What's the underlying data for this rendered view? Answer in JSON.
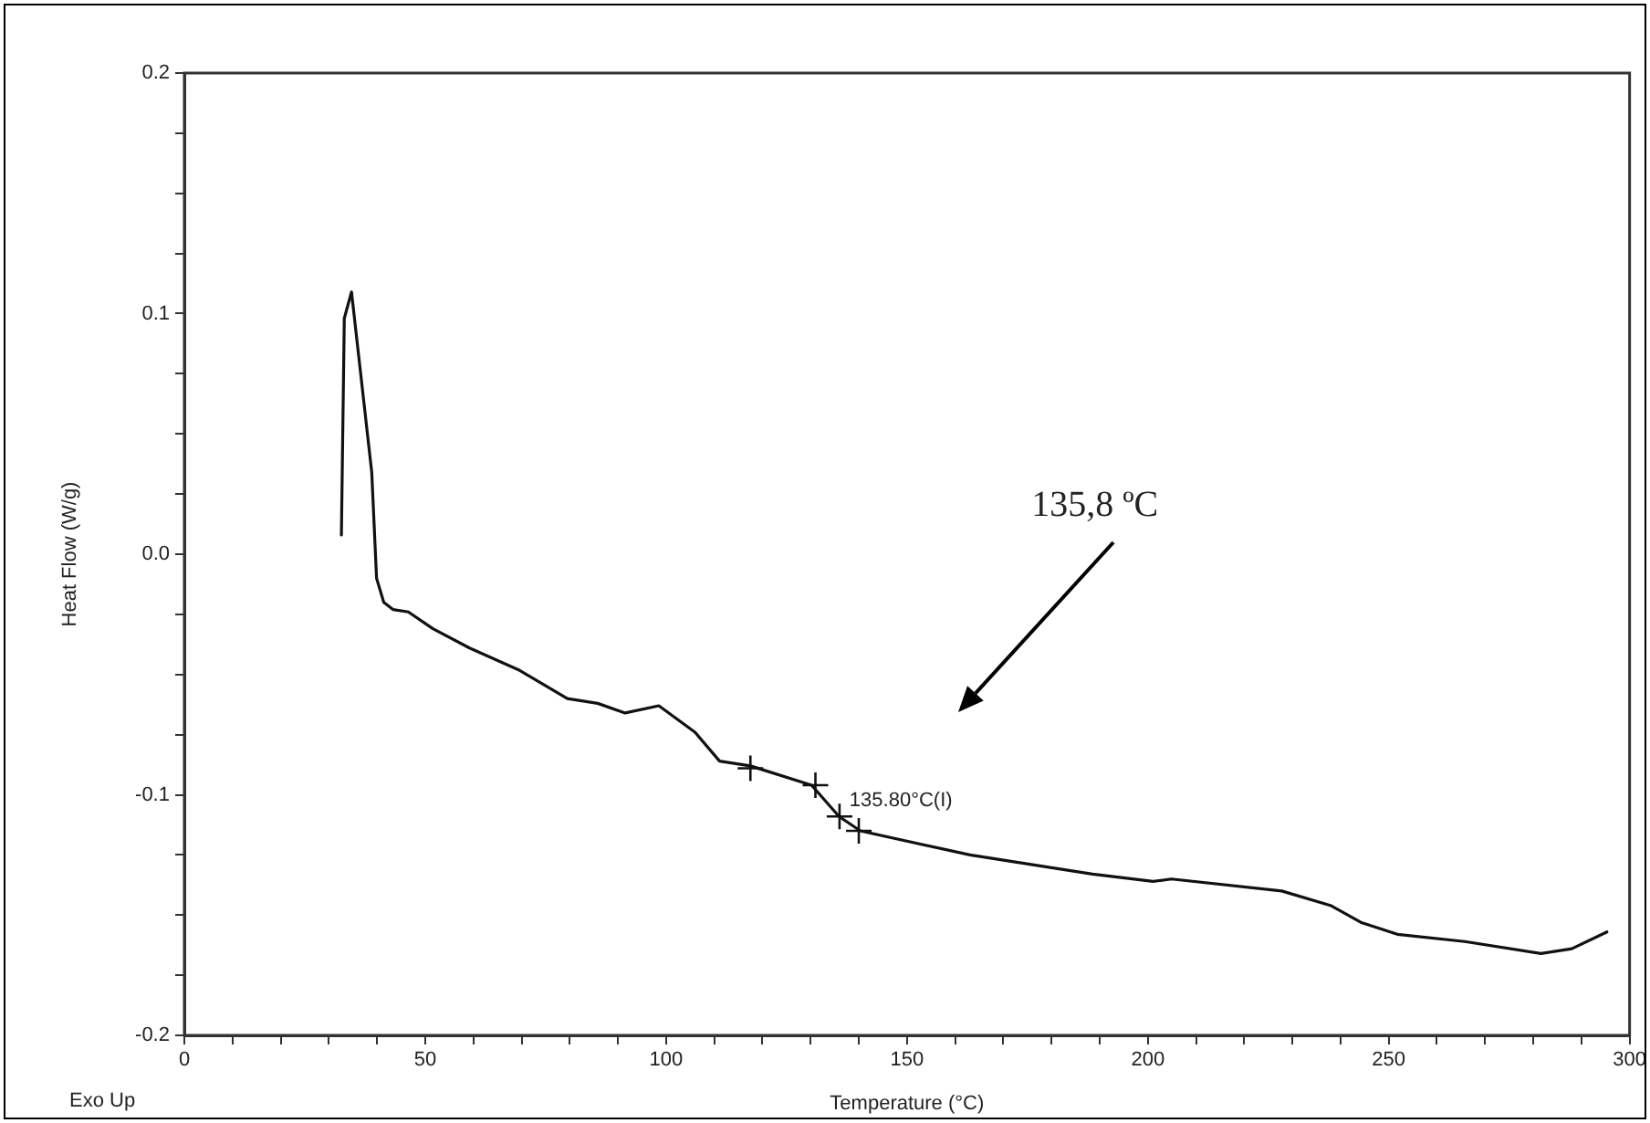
{
  "chart_data": {
    "type": "line",
    "xlabel": "Temperature (°C)",
    "ylabel": "Heat Flow (W/g)",
    "xlim": [
      0,
      300
    ],
    "xticks": [
      0,
      {
        "value": 10,
        "label": null
      },
      {
        "value": 20,
        "label": null
      },
      {
        "value": 30,
        "label": null
      },
      {
        "value": 40,
        "label": null
      },
      50,
      {
        "value": 60,
        "label": null
      },
      {
        "value": 70,
        "label": null
      },
      {
        "value": 80,
        "label": null
      },
      {
        "value": 90,
        "label": null
      },
      100,
      {
        "value": 110,
        "label": null
      },
      {
        "value": 120,
        "label": null
      },
      {
        "value": 130,
        "label": null
      },
      {
        "value": 140,
        "label": null
      },
      150,
      {
        "value": 160,
        "label": null
      },
      {
        "value": 170,
        "label": null
      },
      {
        "value": 180,
        "label": null
      },
      {
        "value": 190,
        "label": null
      },
      200,
      {
        "value": 210,
        "label": null
      },
      {
        "value": 220,
        "label": null
      },
      {
        "value": 230,
        "label": null
      },
      {
        "value": 240,
        "label": null
      },
      250,
      {
        "value": 260,
        "label": null
      },
      {
        "value": 270,
        "label": null
      },
      {
        "value": 280,
        "label": null
      },
      {
        "value": 290,
        "label": null
      },
      300
    ],
    "ylim": [
      -0.2,
      0.2
    ],
    "yticks": [
      {
        "value": -0.2,
        "label": "-0.2"
      },
      {
        "value": -0.175,
        "label": null
      },
      {
        "value": -0.15,
        "label": null
      },
      {
        "value": -0.125,
        "label": null
      },
      {
        "value": -0.1,
        "label": "-0.1"
      },
      {
        "value": -0.075,
        "label": null
      },
      {
        "value": -0.05,
        "label": null
      },
      {
        "value": -0.025,
        "label": null
      },
      {
        "value": 0,
        "label": "0.0"
      },
      {
        "value": 0.025,
        "label": null
      },
      {
        "value": 0.05,
        "label": null
      },
      {
        "value": 0.075,
        "label": null
      },
      {
        "value": 0.1,
        "label": "0.1"
      },
      {
        "value": 0.125,
        "label": null
      },
      {
        "value": 0.15,
        "label": null
      },
      {
        "value": 0.175,
        "label": null
      },
      {
        "value": 0.2,
        "label": "0.2"
      }
    ],
    "grid": false,
    "legend": false,
    "line_style": "solid",
    "marker": "none",
    "series": [
      {
        "color": "#111111",
        "x": [
          32.6,
          33.2,
          34.7,
          38.9,
          39.9,
          41.4,
          43.3,
          46.5,
          51.6,
          59.2,
          69.3,
          79.5,
          85.8,
          91.5,
          98.5,
          106,
          111.1,
          117.5,
          130.2,
          135.9,
          140.3,
          163.1,
          188.5,
          201.1,
          204.9,
          227.8,
          237.9,
          244.2,
          251.8,
          265.8,
          281.6,
          288,
          295.3
        ],
        "values": [
          0.008,
          0.098,
          0.109,
          0.034,
          -0.01,
          -0.02,
          -0.023,
          -0.024,
          -0.031,
          -0.039,
          -0.048,
          -0.06,
          -0.062,
          -0.066,
          -0.063,
          -0.074,
          -0.086,
          -0.088,
          -0.096,
          -0.109,
          -0.115,
          -0.125,
          -0.133,
          -0.136,
          -0.135,
          -0.14,
          -0.146,
          -0.153,
          -0.158,
          -0.161,
          -0.166,
          -0.164,
          -0.157
        ]
      },
      {
        "type": "scatter",
        "marker": "cross",
        "color": "#111111",
        "x": [
          117.5,
          131,
          136,
          140
        ],
        "values": [
          -0.089,
          -0.096,
          -0.109,
          -0.115
        ]
      }
    ],
    "annotations": [
      "Exo Up",
      "135,8 ºC",
      {
        "text": "135.80°C(I)",
        "x": 135.8,
        "y": -0.109
      }
    ]
  }
}
